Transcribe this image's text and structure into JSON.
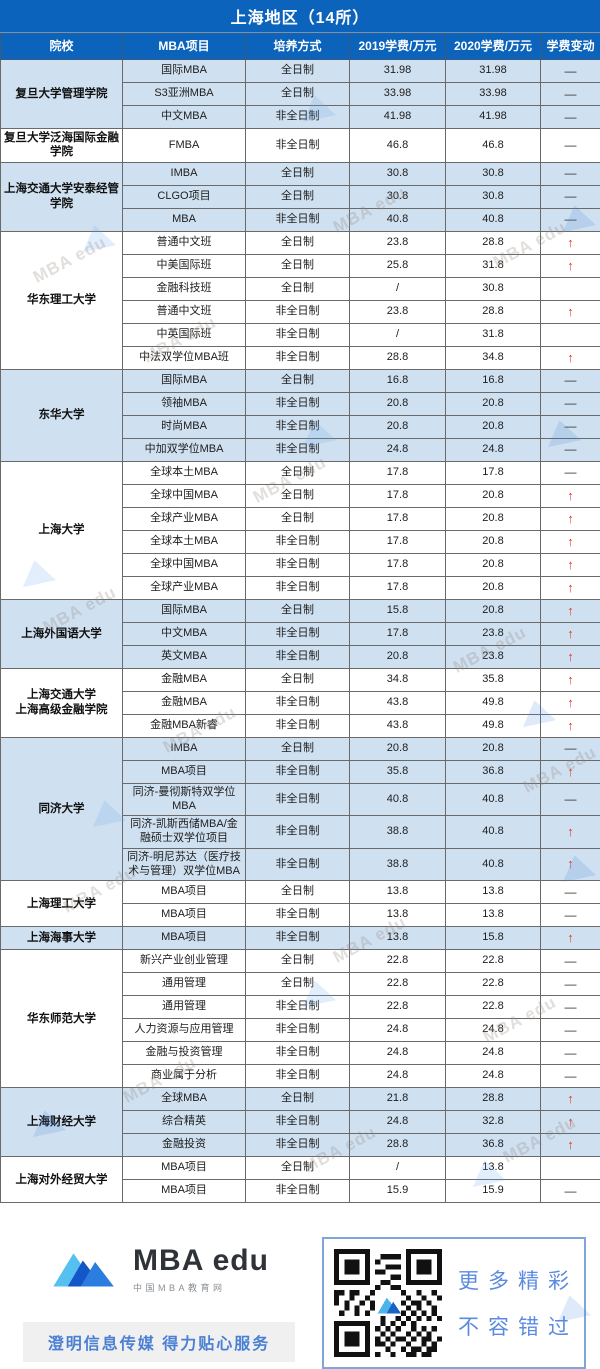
{
  "title": "上海地区（14所）",
  "watermark_text": "MBA edu",
  "colors": {
    "header_blue": "#0b63bc",
    "row_blue": "#cfe0f0",
    "arrow_red": "#e23b2e",
    "accent_blue": "#4a7fd4"
  },
  "table": {
    "columns": [
      "院校",
      "MBA项目",
      "培养方式",
      "2019学费/万元",
      "2020学费/万元",
      "学费变动"
    ],
    "groups": [
      {
        "school": "复旦大学管理学院",
        "shaded": true,
        "rows": [
          [
            "国际MBA",
            "全日制",
            "31.98",
            "31.98",
            "—"
          ],
          [
            "S3亚洲MBA",
            "全日制",
            "33.98",
            "33.98",
            "—"
          ],
          [
            "中文MBA",
            "非全日制",
            "41.98",
            "41.98",
            "—"
          ]
        ]
      },
      {
        "school": "复旦大学泛海国际金融学院",
        "shaded": false,
        "rows": [
          [
            "FMBA",
            "非全日制",
            "46.8",
            "46.8",
            "—"
          ]
        ]
      },
      {
        "school": "上海交通大学安泰经管学院",
        "shaded": true,
        "rows": [
          [
            "IMBA",
            "全日制",
            "30.8",
            "30.8",
            "—"
          ],
          [
            "CLGO项目",
            "全日制",
            "30.8",
            "30.8",
            "—"
          ],
          [
            "MBA",
            "非全日制",
            "40.8",
            "40.8",
            "—"
          ]
        ]
      },
      {
        "school": "华东理工大学",
        "shaded": false,
        "rows": [
          [
            "普通中文班",
            "全日制",
            "23.8",
            "28.8",
            "↑"
          ],
          [
            "中美国际班",
            "全日制",
            "25.8",
            "31.8",
            "↑"
          ],
          [
            "金融科技班",
            "全日制",
            "/",
            "30.8",
            ""
          ],
          [
            "普通中文班",
            "非全日制",
            "23.8",
            "28.8",
            "↑"
          ],
          [
            "中英国际班",
            "非全日制",
            "/",
            "31.8",
            ""
          ],
          [
            "中法双学位MBA班",
            "非全日制",
            "28.8",
            "34.8",
            "↑"
          ]
        ]
      },
      {
        "school": "东华大学",
        "shaded": true,
        "rows": [
          [
            "国际MBA",
            "全日制",
            "16.8",
            "16.8",
            "—"
          ],
          [
            "领袖MBA",
            "非全日制",
            "20.8",
            "20.8",
            "—"
          ],
          [
            "时尚MBA",
            "非全日制",
            "20.8",
            "20.8",
            "—"
          ],
          [
            "中加双学位MBA",
            "非全日制",
            "24.8",
            "24.8",
            "—"
          ]
        ]
      },
      {
        "school": "上海大学",
        "shaded": false,
        "rows": [
          [
            "全球本土MBA",
            "全日制",
            "17.8",
            "17.8",
            "—"
          ],
          [
            "全球中国MBA",
            "全日制",
            "17.8",
            "20.8",
            "↑"
          ],
          [
            "全球产业MBA",
            "全日制",
            "17.8",
            "20.8",
            "↑"
          ],
          [
            "全球本土MBA",
            "非全日制",
            "17.8",
            "20.8",
            "↑"
          ],
          [
            "全球中国MBA",
            "非全日制",
            "17.8",
            "20.8",
            "↑"
          ],
          [
            "全球产业MBA",
            "非全日制",
            "17.8",
            "20.8",
            "↑"
          ]
        ]
      },
      {
        "school": "上海外国语大学",
        "shaded": true,
        "rows": [
          [
            "国际MBA",
            "全日制",
            "15.8",
            "20.8",
            "↑"
          ],
          [
            "中文MBA",
            "非全日制",
            "17.8",
            "23.8",
            "↑"
          ],
          [
            "英文MBA",
            "非全日制",
            "20.8",
            "23.8",
            "↑"
          ]
        ]
      },
      {
        "school": "上海交通大学\n上海高级金融学院",
        "shaded": false,
        "rows": [
          [
            "金融MBA",
            "全日制",
            "34.8",
            "35.8",
            "↑"
          ],
          [
            "金融MBA",
            "非全日制",
            "43.8",
            "49.8",
            "↑"
          ],
          [
            "金融MBA新睿",
            "非全日制",
            "43.8",
            "49.8",
            "↑"
          ]
        ]
      },
      {
        "school": "同济大学",
        "shaded": true,
        "rows": [
          [
            "IMBA",
            "全日制",
            "20.8",
            "20.8",
            "—"
          ],
          [
            "MBA项目",
            "非全日制",
            "35.8",
            "36.8",
            "↑"
          ],
          [
            "同济-曼彻斯特双学位MBA",
            "非全日制",
            "40.8",
            "40.8",
            "—"
          ],
          [
            "同济-凯斯西储MBA/金融硕士双学位项目",
            "非全日制",
            "38.8",
            "40.8",
            "↑"
          ],
          [
            "同济-明尼苏达（医疗技术与管理）双学位MBA",
            "非全日制",
            "38.8",
            "40.8",
            "↑"
          ]
        ]
      },
      {
        "school": "上海理工大学",
        "shaded": false,
        "rows": [
          [
            "MBA项目",
            "全日制",
            "13.8",
            "13.8",
            "—"
          ],
          [
            "MBA项目",
            "非全日制",
            "13.8",
            "13.8",
            "—"
          ]
        ]
      },
      {
        "school": "上海海事大学",
        "shaded": true,
        "rows": [
          [
            "MBA项目",
            "非全日制",
            "13.8",
            "15.8",
            "↑"
          ]
        ]
      },
      {
        "school": "华东师范大学",
        "shaded": false,
        "rows": [
          [
            "新兴产业创业管理",
            "全日制",
            "22.8",
            "22.8",
            "—"
          ],
          [
            "通用管理",
            "全日制",
            "22.8",
            "22.8",
            "—"
          ],
          [
            "通用管理",
            "非全日制",
            "22.8",
            "22.8",
            "—"
          ],
          [
            "人力资源与应用管理",
            "非全日制",
            "24.8",
            "24.8",
            "—"
          ],
          [
            "金融与投资管理",
            "非全日制",
            "24.8",
            "24.8",
            "—"
          ],
          [
            "商业属于分析",
            "非全日制",
            "24.8",
            "24.8",
            "—"
          ]
        ]
      },
      {
        "school": "上海财经大学",
        "shaded": true,
        "rows": [
          [
            "全球MBA",
            "全日制",
            "21.8",
            "28.8",
            "↑"
          ],
          [
            "综合精英",
            "非全日制",
            "24.8",
            "32.8",
            "↑"
          ],
          [
            "金融投资",
            "非全日制",
            "28.8",
            "36.8",
            "↑"
          ]
        ]
      },
      {
        "school": "上海对外经贸大学",
        "shaded": false,
        "rows": [
          [
            "MBA项目",
            "全日制",
            "/",
            "13.8",
            ""
          ],
          [
            "MBA项目",
            "非全日制",
            "15.9",
            "15.9",
            "—"
          ]
        ]
      }
    ]
  },
  "footer": {
    "brand_name": "MBA edu",
    "brand_subtitle": "中国MBA教育网",
    "tagline": "澄明信息传媒  得力贴心服务",
    "qr_caption_line1": "更多精彩",
    "qr_caption_line2": "不容错过"
  }
}
